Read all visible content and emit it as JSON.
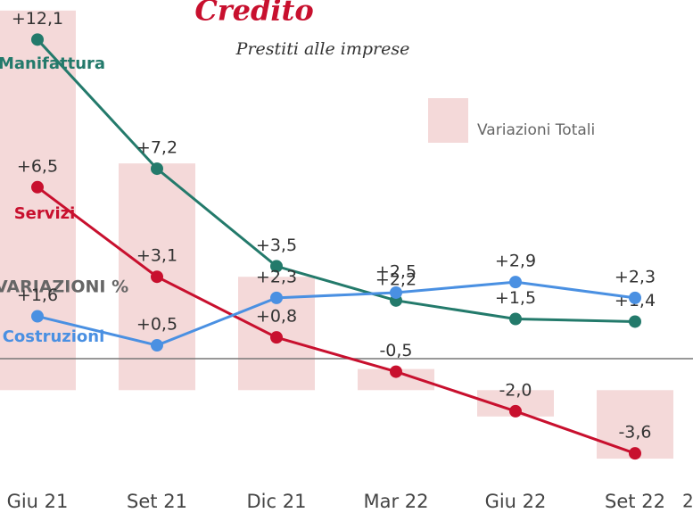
{
  "chart_data": {
    "type": "line",
    "title": "Credito",
    "subtitle": "Prestiti alle imprese",
    "y_axis_label": "VARIAZIONI %",
    "page_number": "2",
    "categories": [
      "Giu 21",
      "Set 21",
      "Dic 21",
      "Mar 22",
      "Giu 22",
      "Set 22"
    ],
    "ylim": [
      -4,
      13.6
    ],
    "y2lim": [
      -2.8,
      14.8
    ],
    "series": [
      {
        "name": "Variazioni Totali",
        "type": "bar",
        "axis": "y2",
        "color": "#f4d9d9",
        "values": [
          14.4,
          8.6,
          4.3,
          0.8,
          -1.0,
          -2.6
        ]
      },
      {
        "name": "Manifattura",
        "color": "#237a6b",
        "values": [
          12.1,
          7.2,
          3.5,
          2.2,
          1.5,
          1.4
        ],
        "value_labels": [
          "+12,1",
          "+7,2",
          "+3,5",
          "+2,2",
          "+1,5",
          "+1,4"
        ]
      },
      {
        "name": "Servizi",
        "color": "#c8102e",
        "values": [
          6.5,
          3.1,
          0.8,
          -0.5,
          -2.0,
          -3.6
        ],
        "value_labels": [
          "+6,5",
          "+3,1",
          "+0,8",
          "-0,5",
          "-2,0",
          "-3,6"
        ]
      },
      {
        "name": "Costruzioni",
        "color": "#4a90e2",
        "values": [
          1.6,
          0.5,
          2.3,
          2.5,
          2.9,
          2.3
        ],
        "value_labels": [
          "+1,6",
          "+0,5",
          "+2,3",
          "+2,5",
          "+2,9",
          "+2,3"
        ]
      }
    ]
  }
}
